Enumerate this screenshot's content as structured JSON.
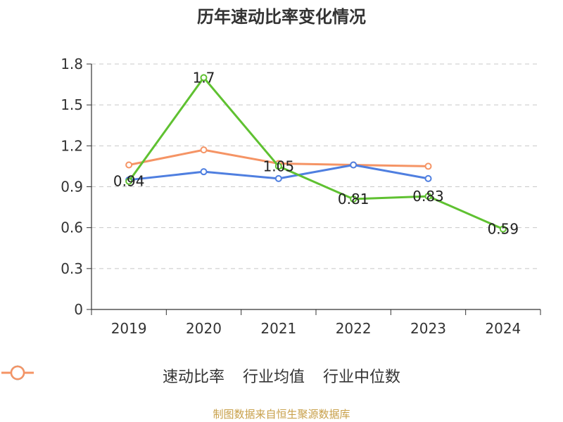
{
  "chart_data": {
    "type": "line",
    "title": "历年速动比率变化情况",
    "categories": [
      "2019",
      "2020",
      "2021",
      "2022",
      "2023",
      "2024"
    ],
    "yticks": [
      "0",
      "0.3",
      "0.6",
      "0.9",
      "1.2",
      "1.5",
      "1.8"
    ],
    "ylim": [
      0,
      1.8
    ],
    "grid": true,
    "series": [
      {
        "name": "速动比率",
        "color": "#5fc131",
        "values": [
          0.94,
          1.7,
          1.05,
          0.81,
          0.83,
          0.59
        ],
        "labels": [
          "0.94",
          "1.7",
          "1.05",
          "0.81",
          "0.83",
          "0.59"
        ]
      },
      {
        "name": "行业均值",
        "color": "#4f7fe0",
        "values": [
          0.95,
          1.01,
          0.96,
          1.06,
          0.96,
          null
        ]
      },
      {
        "name": "行业中位数",
        "color": "#f59465",
        "values": [
          1.06,
          1.17,
          1.07,
          1.06,
          1.05,
          null
        ]
      }
    ],
    "legend_position": "bottom"
  },
  "source_text": "制图数据来自恒生聚源数据库"
}
